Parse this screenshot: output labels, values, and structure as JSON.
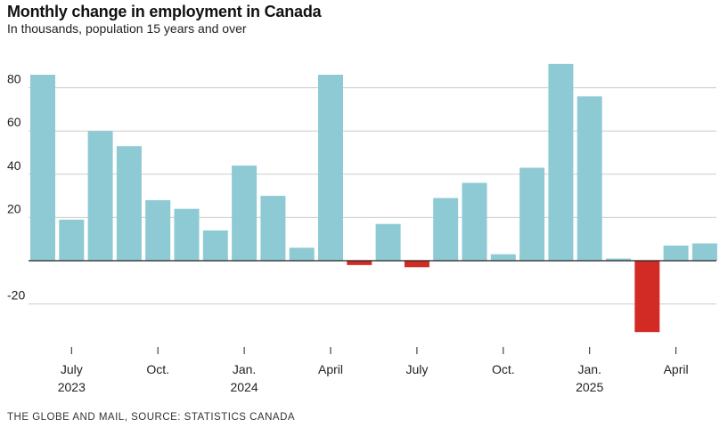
{
  "header": {
    "title": "Monthly change in employment in Canada",
    "subtitle": "In thousands, population 15 years and over"
  },
  "footer": {
    "source": "THE GLOBE AND MAIL, SOURCE: STATISTICS CANADA"
  },
  "colors": {
    "positive": "#8ecad4",
    "negative": "#d22b25",
    "grid": "#cccccc",
    "axis": "#222222"
  },
  "chart_data": {
    "type": "bar",
    "title": "Monthly change in employment in Canada",
    "subtitle": "In thousands, population 15 years and over",
    "xlabel": "",
    "ylabel": "",
    "ylim": [
      -40,
      95
    ],
    "yticks": [
      -20,
      20,
      40,
      60,
      80
    ],
    "grid": true,
    "categories": [
      "2023-06",
      "2023-07",
      "2023-08",
      "2023-09",
      "2023-10",
      "2023-11",
      "2023-12",
      "2024-01",
      "2024-02",
      "2024-03",
      "2024-04",
      "2024-05",
      "2024-06",
      "2024-07",
      "2024-08",
      "2024-09",
      "2024-10",
      "2024-11",
      "2024-12",
      "2025-01",
      "2025-02",
      "2025-03",
      "2025-04",
      "2025-05"
    ],
    "values": [
      86,
      19,
      60,
      53,
      28,
      24,
      14,
      44,
      30,
      6,
      86,
      -2,
      17,
      -3,
      29,
      36,
      3,
      43,
      91,
      76,
      1,
      -33,
      7,
      8
    ],
    "x_tick_labels": [
      {
        "index": 1,
        "label": "July",
        "sub": "2023"
      },
      {
        "index": 4,
        "label": "Oct.",
        "sub": ""
      },
      {
        "index": 7,
        "label": "Jan.",
        "sub": "2024"
      },
      {
        "index": 10,
        "label": "April",
        "sub": ""
      },
      {
        "index": 13,
        "label": "July",
        "sub": ""
      },
      {
        "index": 16,
        "label": "Oct.",
        "sub": ""
      },
      {
        "index": 19,
        "label": "Jan.",
        "sub": "2025"
      },
      {
        "index": 22,
        "label": "April",
        "sub": ""
      }
    ]
  }
}
